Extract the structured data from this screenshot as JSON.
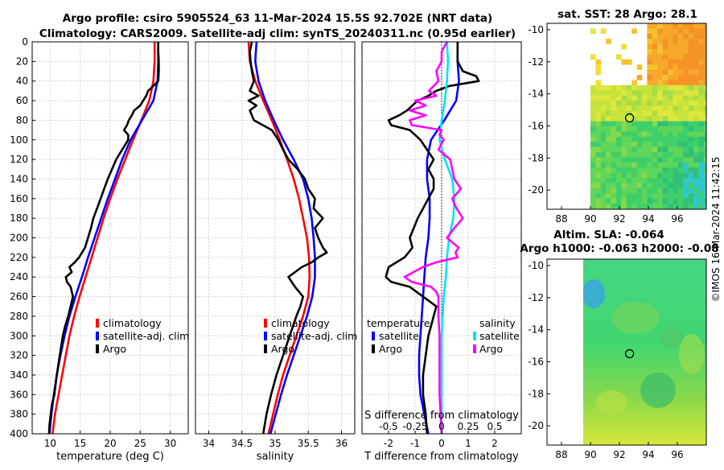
{
  "titles": {
    "line1": "Argo profile: csiro 5905524_63 11-Mar-2024 15.5S 92.702E (NRT data)",
    "line2": "Climatology: CARS2009. Satellite-adj clim: synTS_20240311.nc (0.95d earlier)",
    "sst": "sat. SST: 28 Argo: 28.1",
    "sla1": "Altim. SLA: -0.064",
    "sla2": "Argo h1000: -0.063 h2000: -0.08",
    "credit": "©IMOS 16-Mar-2024 11:42:15"
  },
  "colors": {
    "clim": "#ff0000",
    "sat": "#0000ff",
    "argo": "#000000",
    "sal_sat": "#00e5ee",
    "sal_argo": "#ff00ff"
  },
  "chart_data": [
    {
      "type": "line",
      "title": "",
      "xlabel": "temperature (deg C)",
      "ylabel": "",
      "xlim": [
        7,
        33
      ],
      "ylim": [
        400,
        0
      ],
      "xticks": [
        "10",
        "15",
        "20",
        "25",
        "30"
      ],
      "yticks": [
        "0",
        "20",
        "40",
        "60",
        "80",
        "100",
        "120",
        "140",
        "160",
        "180",
        "200",
        "220",
        "240",
        "260",
        "280",
        "300",
        "320",
        "340",
        "360",
        "380",
        "400"
      ],
      "legend": [
        "climatology",
        "satellite-adj. clim",
        "Argo"
      ],
      "series": [
        {
          "name": "climatology",
          "depth": [
            0,
            20,
            40,
            60,
            80,
            100,
            120,
            140,
            160,
            180,
            200,
            220,
            240,
            260,
            280,
            300,
            320,
            340,
            360,
            380,
            400
          ],
          "values": [
            27.4,
            27.4,
            27.2,
            26.5,
            25.2,
            23.8,
            22.5,
            21.2,
            20,
            18.9,
            17.9,
            16.9,
            15.9,
            14.9,
            14,
            13.2,
            12.6,
            12,
            11.4,
            10.8,
            10.4
          ]
        },
        {
          "name": "satellite-adj. clim",
          "depth": [
            0,
            20,
            40,
            60,
            80,
            100,
            120,
            140,
            160,
            180,
            200,
            220,
            240,
            260,
            280,
            300,
            320,
            340,
            360,
            380,
            400
          ],
          "values": [
            28,
            28,
            27.9,
            27.2,
            25.3,
            23.4,
            22,
            20.8,
            19.6,
            18.5,
            17.4,
            16.3,
            15.3,
            14.2,
            13.2,
            12.4,
            11.7,
            11.1,
            10.6,
            10.2,
            9.9
          ]
        },
        {
          "name": "Argo",
          "depth": [
            0,
            10,
            20,
            30,
            40,
            45,
            50,
            55,
            60,
            65,
            70,
            75,
            80,
            85,
            90,
            95,
            100,
            110,
            120,
            130,
            140,
            150,
            160,
            170,
            180,
            190,
            200,
            210,
            220,
            225,
            230,
            235,
            240,
            245,
            250,
            260,
            270,
            280,
            290,
            300,
            320,
            340,
            360,
            370,
            380,
            390,
            400
          ],
          "values": [
            28,
            28,
            28.1,
            28.1,
            28,
            27.2,
            26.3,
            26,
            25.5,
            25,
            24,
            23.6,
            23.1,
            22.8,
            22.3,
            23,
            23,
            22,
            21,
            20.3,
            19.6,
            19,
            18.4,
            17.8,
            17.2,
            16.8,
            16.3,
            15.8,
            14.8,
            14.1,
            13.2,
            13.6,
            12.6,
            12.8,
            13.4,
            13.8,
            13.4,
            13,
            12.5,
            12.1,
            11.6,
            11.1,
            10.7,
            10.3,
            10.1,
            9.9,
            9.8
          ]
        }
      ]
    },
    {
      "type": "line",
      "title": "",
      "xlabel": "salinity",
      "ylabel": "",
      "xlim": [
        33.8,
        36.2
      ],
      "ylim": [
        400,
        0
      ],
      "xticks": [
        "34",
        "34.5",
        "35",
        "35.5",
        "36"
      ],
      "legend": [
        "climatology",
        "satellite-adj. clim",
        "Argo"
      ],
      "series": [
        {
          "name": "climatology",
          "depth": [
            0,
            20,
            40,
            60,
            80,
            100,
            120,
            140,
            160,
            180,
            200,
            220,
            240,
            260,
            280,
            300,
            320,
            340,
            360,
            380,
            400
          ],
          "values": [
            34.6,
            34.62,
            34.7,
            34.82,
            34.95,
            35.07,
            35.18,
            35.28,
            35.36,
            35.42,
            35.48,
            35.51,
            35.52,
            35.5,
            35.42,
            35.32,
            35.22,
            35.12,
            35.04,
            34.97,
            34.9
          ]
        },
        {
          "name": "satellite-adj. clim",
          "depth": [
            0,
            20,
            40,
            60,
            80,
            100,
            120,
            140,
            160,
            180,
            200,
            220,
            240,
            260,
            280,
            300,
            320,
            340,
            360,
            380,
            400
          ],
          "values": [
            34.72,
            34.7,
            34.75,
            34.85,
            34.98,
            35.12,
            35.28,
            35.42,
            35.5,
            35.55,
            35.58,
            35.6,
            35.6,
            35.56,
            35.48,
            35.38,
            35.28,
            35.18,
            35.09,
            35.01,
            34.93
          ]
        },
        {
          "name": "Argo",
          "depth": [
            0,
            10,
            20,
            30,
            40,
            50,
            55,
            60,
            65,
            70,
            80,
            90,
            100,
            110,
            120,
            130,
            140,
            150,
            160,
            170,
            180,
            190,
            200,
            210,
            215,
            220,
            225,
            230,
            240,
            250,
            260,
            270,
            280,
            300,
            320,
            340,
            360,
            380,
            400
          ],
          "values": [
            34.65,
            34.62,
            34.63,
            34.65,
            34.68,
            34.62,
            34.75,
            34.6,
            34.72,
            34.62,
            34.68,
            34.95,
            35.05,
            35.12,
            35.2,
            35.34,
            35.45,
            35.5,
            35.6,
            35.58,
            35.72,
            35.6,
            35.65,
            35.72,
            35.78,
            35.65,
            35.55,
            35.4,
            35.2,
            35.3,
            35.42,
            35.38,
            35.32,
            35.22,
            35.12,
            35.02,
            34.94,
            34.87,
            34.82
          ]
        }
      ]
    },
    {
      "type": "line",
      "title": "",
      "xlabel": "T difference from climatology",
      "x2label": "S difference from climatology",
      "ylabel": "",
      "xlim": [
        -3,
        3
      ],
      "x2lim": [
        -0.75,
        0.75
      ],
      "ylim": [
        400,
        0
      ],
      "xticks": [
        "-2",
        "-1",
        "0",
        "1",
        "2"
      ],
      "x2ticks": [
        "-0.5",
        "-0.25",
        "0",
        "0.25",
        "0.5"
      ],
      "legend_titles": [
        "temperature",
        "salinity"
      ],
      "legend": [
        "satellite",
        "Argo",
        "satellite",
        "Argo"
      ],
      "series": [
        {
          "name": "temperature satellite",
          "depth": [
            0,
            20,
            40,
            60,
            80,
            100,
            120,
            140,
            160,
            180,
            200,
            220,
            240,
            260,
            280,
            300,
            320,
            340,
            360,
            380,
            400
          ],
          "values": [
            0.6,
            0.6,
            0.65,
            0.55,
            0.1,
            -0.4,
            -0.55,
            -0.55,
            -0.45,
            -0.45,
            -0.5,
            -0.6,
            -0.65,
            -0.7,
            -0.75,
            -0.8,
            -0.85,
            -0.85,
            -0.8,
            -0.65,
            -0.5
          ]
        },
        {
          "name": "temperature Argo",
          "depth": [
            0,
            10,
            20,
            30,
            35,
            40,
            45,
            50,
            55,
            60,
            65,
            70,
            75,
            80,
            85,
            90,
            100,
            120,
            130,
            140,
            150,
            160,
            180,
            200,
            210,
            220,
            225,
            230,
            240,
            245,
            250,
            260,
            270,
            280,
            300,
            320,
            340,
            360,
            380,
            400
          ],
          "values": [
            0.6,
            0.6,
            0.6,
            0.8,
            1.3,
            1.4,
            0.3,
            -0.2,
            -0.5,
            -0.9,
            -1.1,
            -1.3,
            -1.6,
            -2,
            -1.9,
            -1.2,
            -0.8,
            -0.3,
            -0.5,
            -0.3,
            -0.3,
            -0.5,
            -0.9,
            -1.2,
            -1.1,
            -1.4,
            -1.7,
            -2,
            -2.1,
            -1.9,
            -1.2,
            -0.7,
            -0.2,
            -0.3,
            -0.5,
            -0.6,
            -0.7,
            -0.7,
            -0.6,
            -0.55
          ]
        },
        {
          "name": "salinity satellite",
          "depth": [
            0,
            20,
            40,
            60,
            80,
            100,
            120,
            140,
            160,
            180,
            200,
            220,
            240,
            260,
            280,
            300,
            320,
            340,
            360,
            380,
            400
          ],
          "values": [
            0.05,
            0.06,
            0.05,
            0.03,
            0.0,
            -0.02,
            0.03,
            0.1,
            0.12,
            0.11,
            0.07,
            0.05,
            0.04,
            0.02,
            0.01,
            0.0,
            0.0,
            0.0,
            0.0,
            0.0,
            0.0
          ]
        },
        {
          "name": "salinity Argo",
          "depth": [
            0,
            10,
            20,
            30,
            40,
            50,
            55,
            60,
            65,
            70,
            75,
            80,
            85,
            90,
            95,
            100,
            110,
            120,
            130,
            140,
            150,
            160,
            170,
            180,
            190,
            200,
            210,
            215,
            220,
            225,
            230,
            240,
            245,
            250,
            255,
            260,
            280,
            300,
            320,
            340,
            360,
            380,
            400
          ],
          "values": [
            0.05,
            0.0,
            0.0,
            -0.05,
            -0.03,
            -0.12,
            -0.05,
            -0.25,
            -0.15,
            -0.3,
            -0.15,
            -0.3,
            -0.28,
            0.0,
            -0.02,
            0.02,
            -0.03,
            0.08,
            0.1,
            0.12,
            0.18,
            0.1,
            0.14,
            0.2,
            0.12,
            0.05,
            0.16,
            0.13,
            0.15,
            -0.05,
            -0.18,
            -0.35,
            -0.28,
            -0.1,
            -0.05,
            -0.03,
            -0.03,
            -0.02,
            -0.02,
            -0.02,
            -0.02,
            -0.01,
            0.0
          ]
        }
      ]
    },
    {
      "type": "heatmap",
      "title": "sat. SST: 28 Argo: 28.1",
      "xlim": [
        87,
        98
      ],
      "ylim": [
        -21.2,
        -9.6
      ],
      "xticks": [
        "88",
        "90",
        "92",
        "94",
        "96"
      ],
      "yticks": [
        "-10",
        "-12",
        "-14",
        "-16",
        "-18",
        "-20"
      ],
      "marker": {
        "lon": 92.7,
        "lat": -15.5
      },
      "data_lon_min": 90
    },
    {
      "type": "heatmap",
      "title": "Altim. SLA: -0.064",
      "xlim": [
        87,
        98
      ],
      "ylim": [
        -21.2,
        -9.6
      ],
      "xticks": [
        "88",
        "90",
        "92",
        "94",
        "96"
      ],
      "yticks": [
        "-10",
        "-12",
        "-14",
        "-16",
        "-18",
        "-20"
      ],
      "marker": {
        "lon": 92.7,
        "lat": -15.5
      },
      "data_lon_min": 90
    }
  ]
}
